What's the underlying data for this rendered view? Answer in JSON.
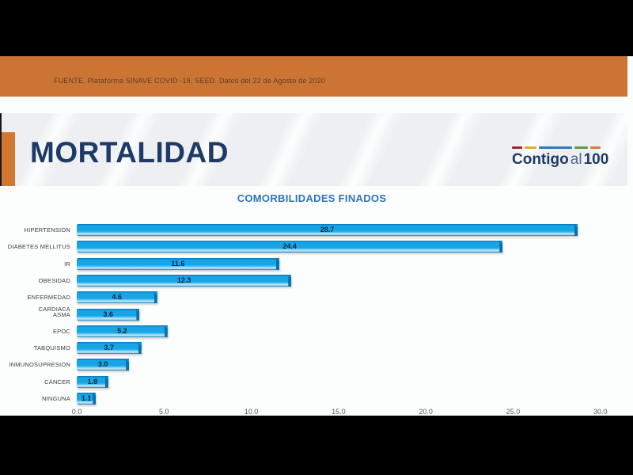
{
  "source_banner": {
    "text": "FUENTE. Plataforma SINAVE COVID -19, SEED. Datos del 22 de Agosto de 2020"
  },
  "header": {
    "title": "MORTALIDAD"
  },
  "logo": {
    "word_main": "Contigo",
    "word_mid": "al",
    "word_num": "100",
    "stripe_colors": [
      "#9b2335",
      "#e3a92b",
      "#2e79c0",
      "#5ba046",
      "#d87f2f"
    ]
  },
  "colors": {
    "banner_bg": "#cc7433",
    "accent_orange": "#d4762e",
    "title_navy": "#1e3a66",
    "chart_title_blue": "#2e74b5",
    "bar_blue": "#17a5e6"
  },
  "chart_data": {
    "type": "bar",
    "orientation": "horizontal",
    "title": "COMORBILIDADES FINADOS",
    "categories": [
      "HIPERTENSION",
      "DIABETES MELLITUS",
      "IR",
      "OBESIDAD",
      "ENFERMEDAD CARDIACA",
      "ASMA",
      "EPOC",
      "TABQUISMO",
      "INMUNOSUPRESION",
      "CANCER",
      "NINGUNA"
    ],
    "values": [
      28.7,
      24.4,
      11.6,
      12.3,
      4.6,
      3.6,
      5.2,
      3.7,
      3.0,
      1.8,
      1.1
    ],
    "value_labels": [
      "28.7",
      "24.4",
      "11.6",
      "12.3",
      "4.6",
      "3.6",
      "5.2",
      "3.7",
      "3.0",
      "1.8",
      "1.1"
    ],
    "x_ticks": [
      0,
      5,
      10,
      15,
      20,
      25,
      30
    ],
    "x_tick_labels": [
      "0.0",
      "5.0",
      "10.0",
      "15.0",
      "20.0",
      "25.0",
      "30.0"
    ],
    "xlim": [
      0,
      30
    ],
    "grid": false,
    "legend": false,
    "value_labels_shown": true
  }
}
